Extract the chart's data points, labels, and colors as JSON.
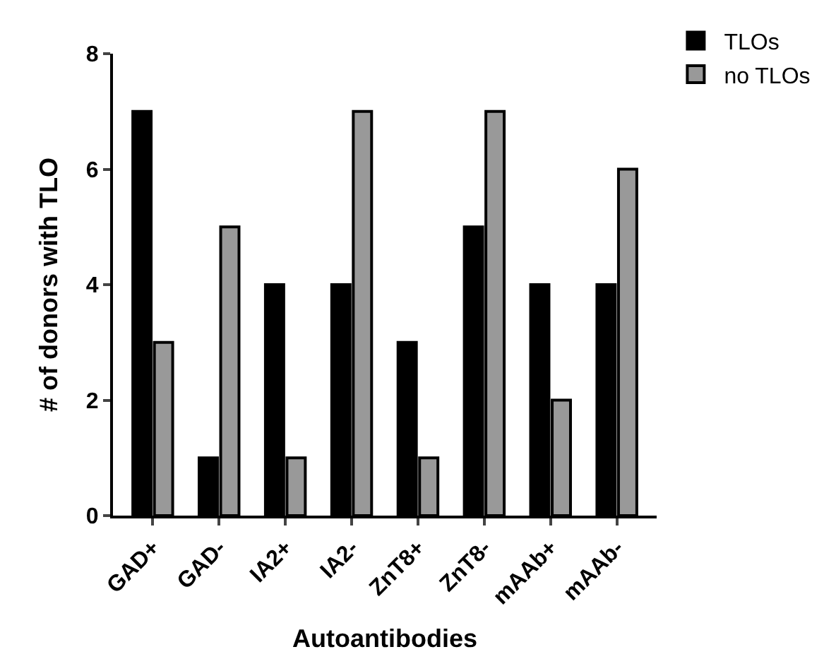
{
  "chart_data": {
    "type": "bar",
    "xlabel": "Autoantibodies",
    "ylabel": "# of donors with TLO",
    "categories": [
      "GAD+",
      "GAD-",
      "IA2+",
      "IA2-",
      "ZnT8+",
      "ZnT8-",
      "mAAb+",
      "mAAb-"
    ],
    "series": [
      {
        "name": "TLOs",
        "color": "#000000",
        "values": [
          7,
          1,
          4,
          4,
          3,
          5,
          4,
          4
        ]
      },
      {
        "name": "no TLOs",
        "color": "#999999",
        "values": [
          3,
          5,
          1,
          7,
          1,
          7,
          2,
          6
        ]
      }
    ],
    "ylim": [
      0,
      8
    ],
    "yticks": [
      0,
      2,
      4,
      6,
      8
    ],
    "legend": "top right"
  }
}
